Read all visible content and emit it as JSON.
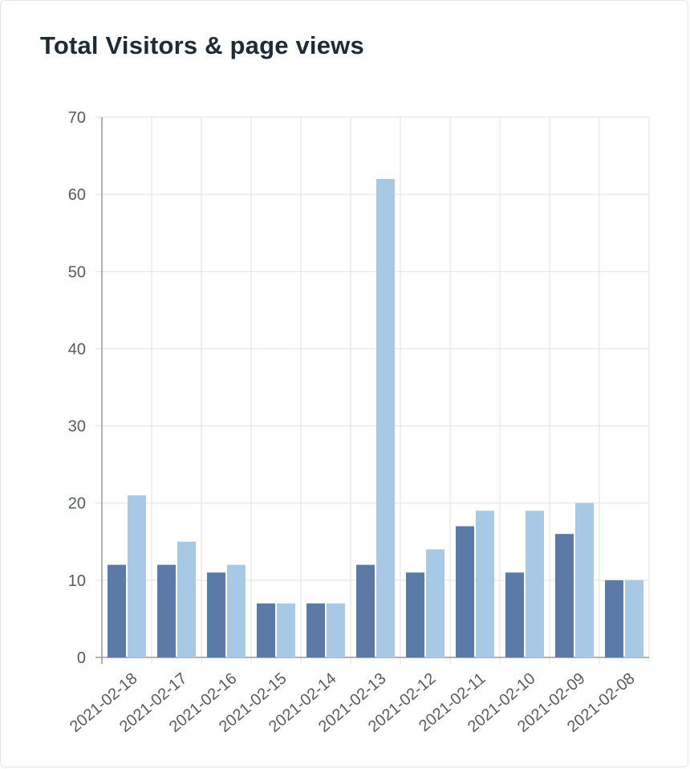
{
  "card": {
    "title": "Total Visitors & page views"
  },
  "colors": {
    "series_visitors": "#5b7aa6",
    "series_page_views": "#a7c9e5",
    "grid": "#e0e0e0",
    "axis": "#999999"
  },
  "chart_data": {
    "type": "bar",
    "title": "Total Visitors & page views",
    "xlabel": "",
    "ylabel": "",
    "ylim": [
      0,
      70
    ],
    "yticks": [
      0,
      10,
      20,
      30,
      40,
      50,
      60,
      70
    ],
    "grid": true,
    "legend": "none",
    "categories": [
      "2021-02-18",
      "2021-02-17",
      "2021-02-16",
      "2021-02-15",
      "2021-02-14",
      "2021-02-13",
      "2021-02-12",
      "2021-02-11",
      "2021-02-10",
      "2021-02-09",
      "2021-02-08"
    ],
    "series": [
      {
        "values": [
          12,
          12,
          11,
          7,
          7,
          12,
          11,
          17,
          11,
          16,
          10
        ]
      },
      {
        "values": [
          21,
          15,
          12,
          7,
          7,
          62,
          14,
          19,
          19,
          20,
          10
        ]
      }
    ]
  }
}
